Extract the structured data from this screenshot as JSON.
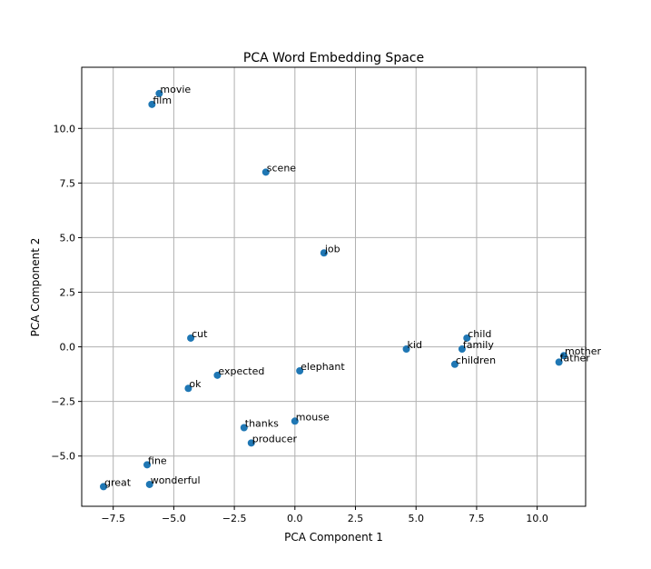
{
  "chart_data": {
    "type": "scatter",
    "title": "PCA Word Embedding Space",
    "xlabel": "PCA Component 1",
    "ylabel": "PCA Component 2",
    "xlim": [
      -8.8,
      12.0
    ],
    "ylim": [
      -7.3,
      12.8
    ],
    "grid": true,
    "marker_color": "#1f77b4",
    "xticks": [
      -7.5,
      -5.0,
      -2.5,
      0.0,
      2.5,
      5.0,
      7.5,
      10.0
    ],
    "xtick_labels": [
      "−7.5",
      "−5.0",
      "−2.5",
      "0.0",
      "2.5",
      "5.0",
      "7.5",
      "10.0"
    ],
    "yticks": [
      -5.0,
      -2.5,
      0.0,
      2.5,
      5.0,
      7.5,
      10.0
    ],
    "ytick_labels": [
      "−5.0",
      "−2.5",
      "0.0",
      "2.5",
      "5.0",
      "7.5",
      "10.0"
    ],
    "points": [
      {
        "label": "movie",
        "x": -5.6,
        "y": 11.6
      },
      {
        "label": "film",
        "x": -5.9,
        "y": 11.1
      },
      {
        "label": "scene",
        "x": -1.2,
        "y": 8.0
      },
      {
        "label": "job",
        "x": 1.2,
        "y": 4.3
      },
      {
        "label": "cut",
        "x": -4.3,
        "y": 0.4
      },
      {
        "label": "kid",
        "x": 4.6,
        "y": -0.1
      },
      {
        "label": "child",
        "x": 7.1,
        "y": 0.4
      },
      {
        "label": "family",
        "x": 6.9,
        "y": -0.1
      },
      {
        "label": "children",
        "x": 6.6,
        "y": -0.8
      },
      {
        "label": "mother",
        "x": 11.1,
        "y": -0.4
      },
      {
        "label": "father",
        "x": 10.9,
        "y": -0.7
      },
      {
        "label": "expected",
        "x": -3.2,
        "y": -1.3
      },
      {
        "label": "elephant",
        "x": 0.2,
        "y": -1.1
      },
      {
        "label": "ok",
        "x": -4.4,
        "y": -1.9
      },
      {
        "label": "mouse",
        "x": 0.0,
        "y": -3.4
      },
      {
        "label": "thanks",
        "x": -2.1,
        "y": -3.7
      },
      {
        "label": "producer",
        "x": -1.8,
        "y": -4.4
      },
      {
        "label": "fine",
        "x": -6.1,
        "y": -5.4
      },
      {
        "label": "wonderful",
        "x": -6.0,
        "y": -6.3
      },
      {
        "label": "great",
        "x": -7.9,
        "y": -6.4
      }
    ]
  }
}
